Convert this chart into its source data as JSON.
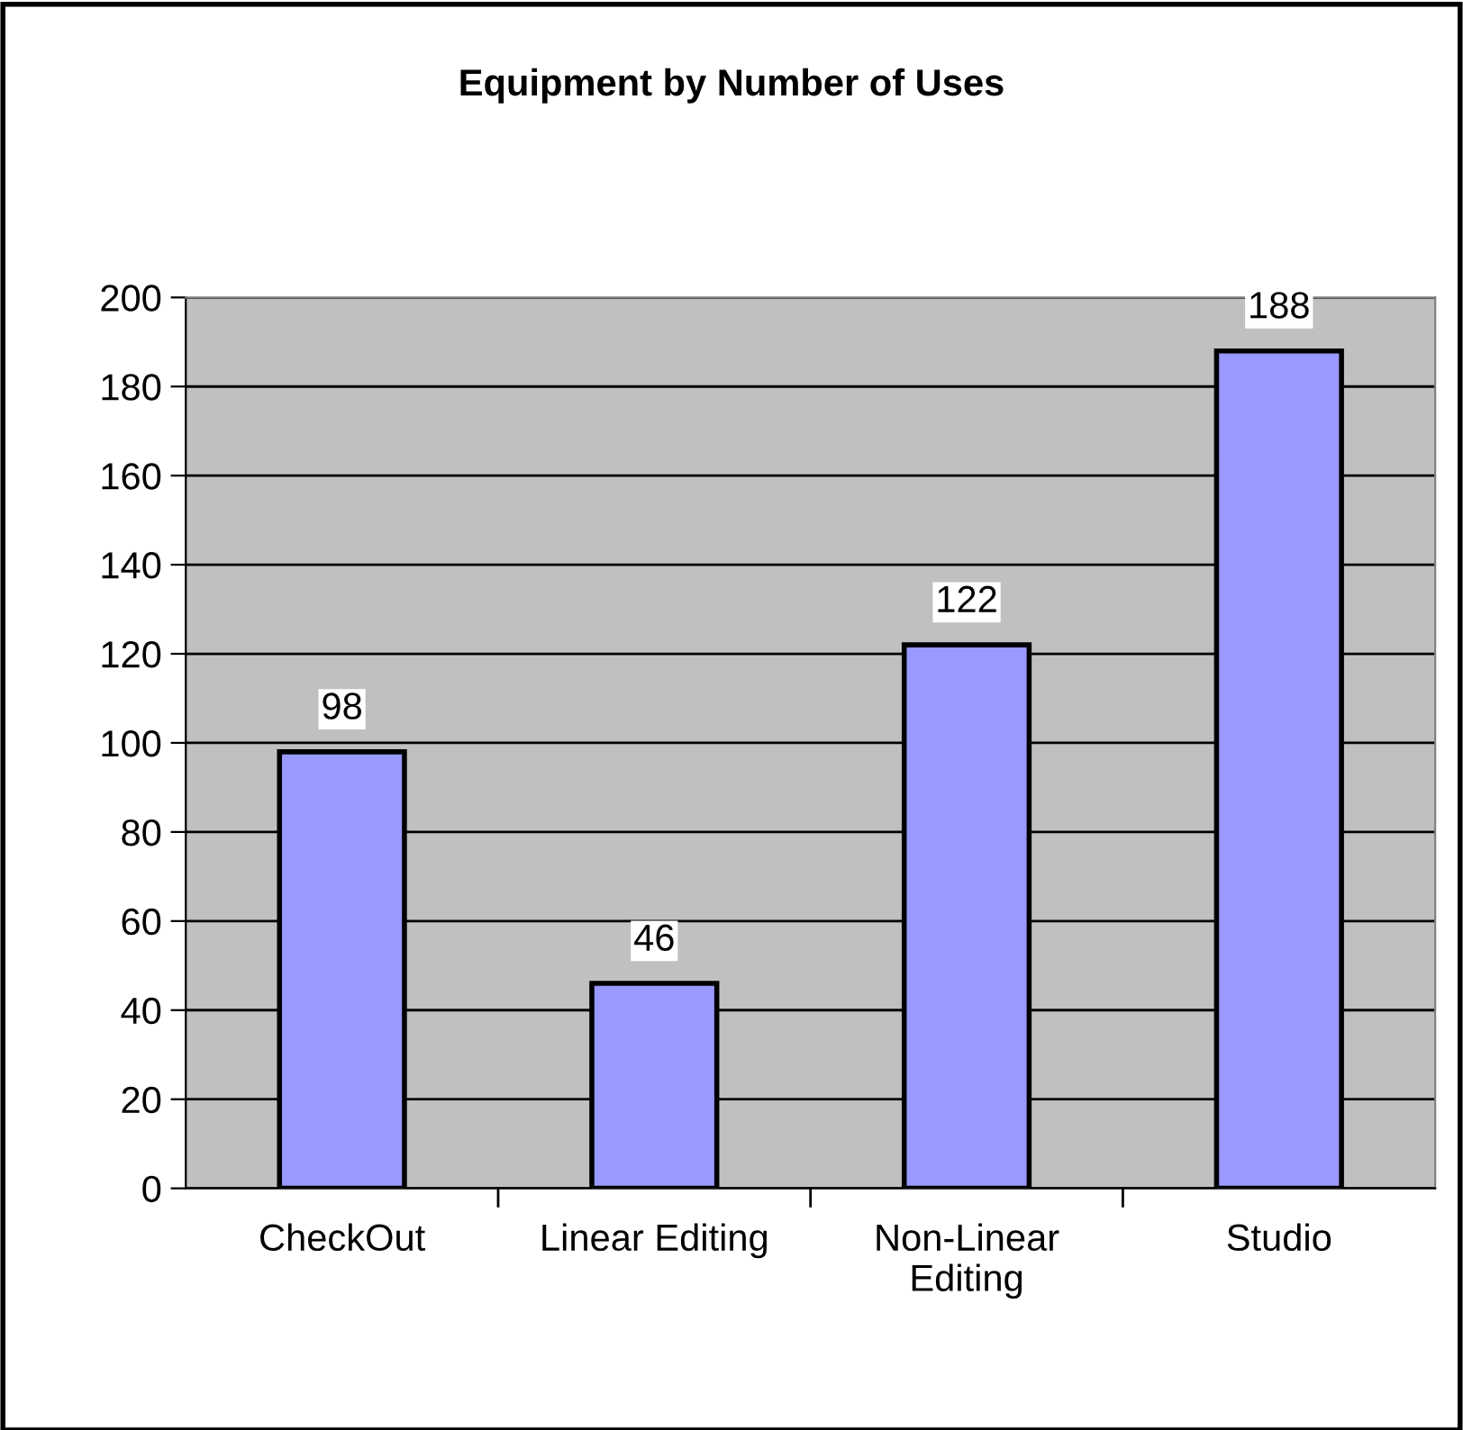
{
  "chart_data": {
    "type": "bar",
    "title": "Equipment by Number of Uses",
    "categories": [
      "CheckOut",
      "Linear Editing",
      "Non-Linear\nEditing",
      "Studio"
    ],
    "values": [
      98,
      46,
      122,
      188
    ],
    "color": "#9999ff",
    "ylim": [
      0,
      200
    ],
    "yticks": [
      0,
      20,
      40,
      60,
      80,
      100,
      120,
      140,
      160,
      180,
      200
    ],
    "grid": "y",
    "data_labels": true
  }
}
